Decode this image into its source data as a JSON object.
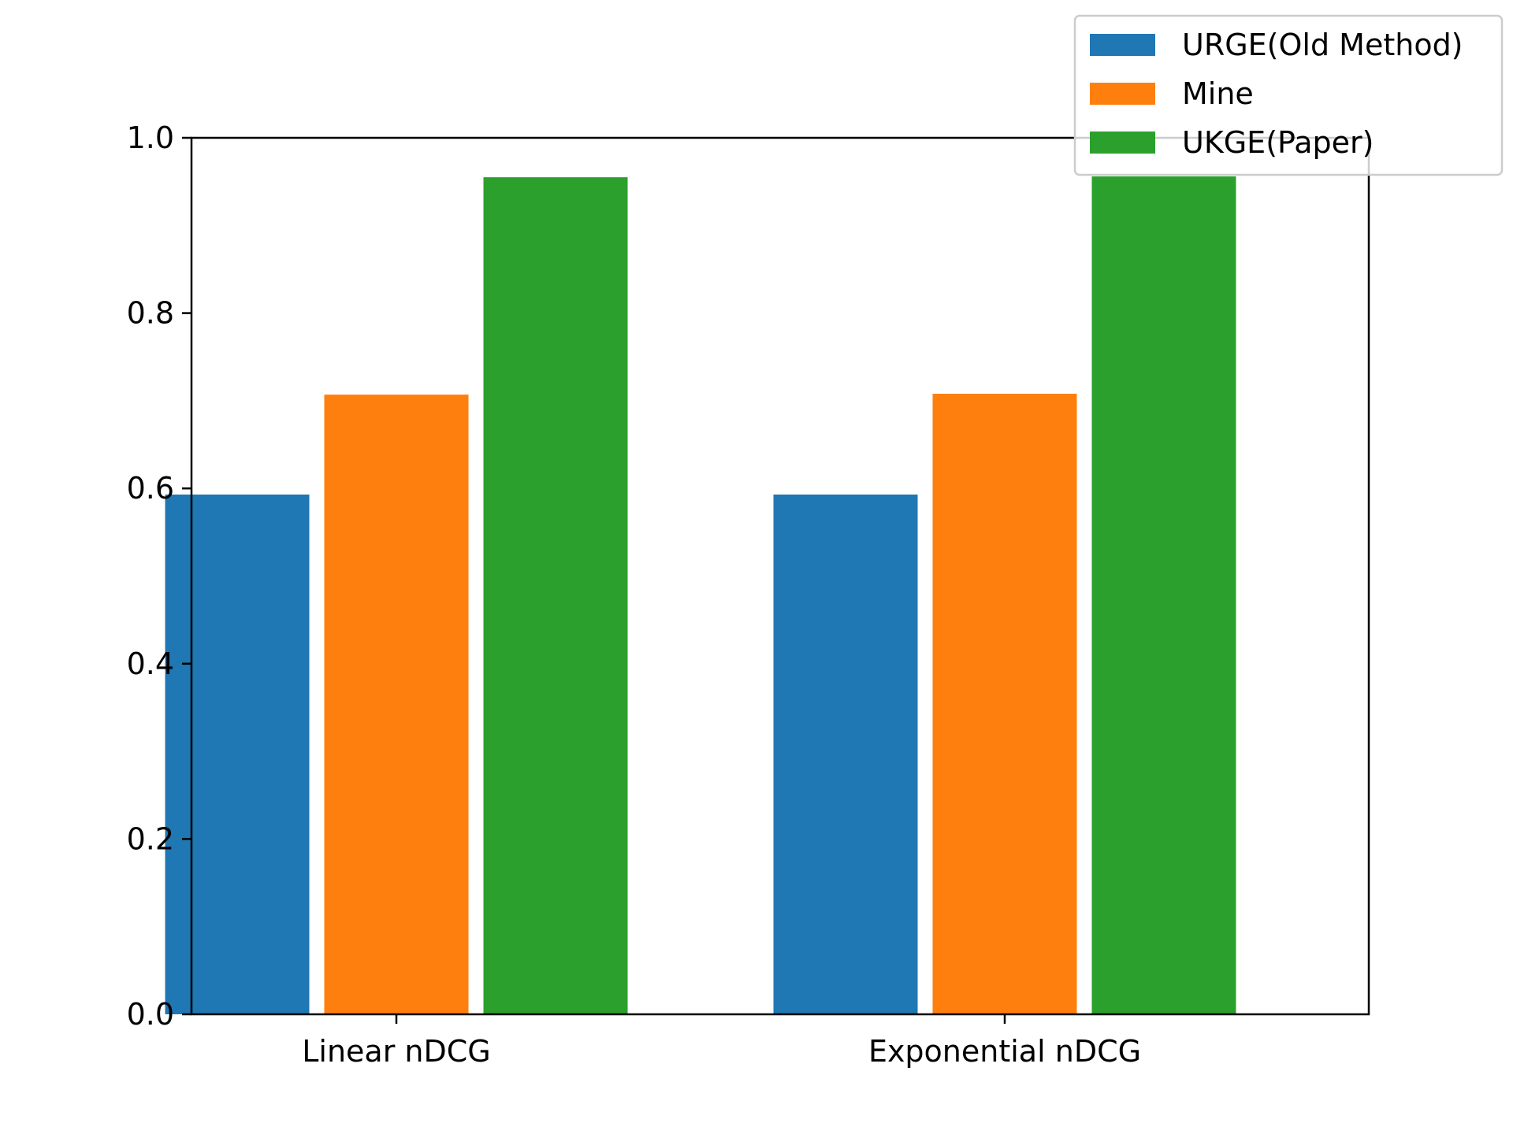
{
  "chart_data": {
    "type": "bar",
    "categories": [
      "Linear nDCG",
      "Exponential nDCG"
    ],
    "series": [
      {
        "name": "URGE(Old Method)",
        "values": [
          0.593,
          0.593
        ],
        "color": "#1f77b4"
      },
      {
        "name": "Mine",
        "values": [
          0.707,
          0.708
        ],
        "color": "#ff7f0e"
      },
      {
        "name": "UKGE(Paper)",
        "values": [
          0.955,
          0.956
        ],
        "color": "#2ca02c"
      }
    ],
    "yticks": [
      "0.0",
      "0.2",
      "0.4",
      "0.6",
      "0.8",
      "1.0"
    ],
    "ylim": [
      0,
      1.0
    ],
    "grid": false,
    "legend_position": "top-right"
  }
}
